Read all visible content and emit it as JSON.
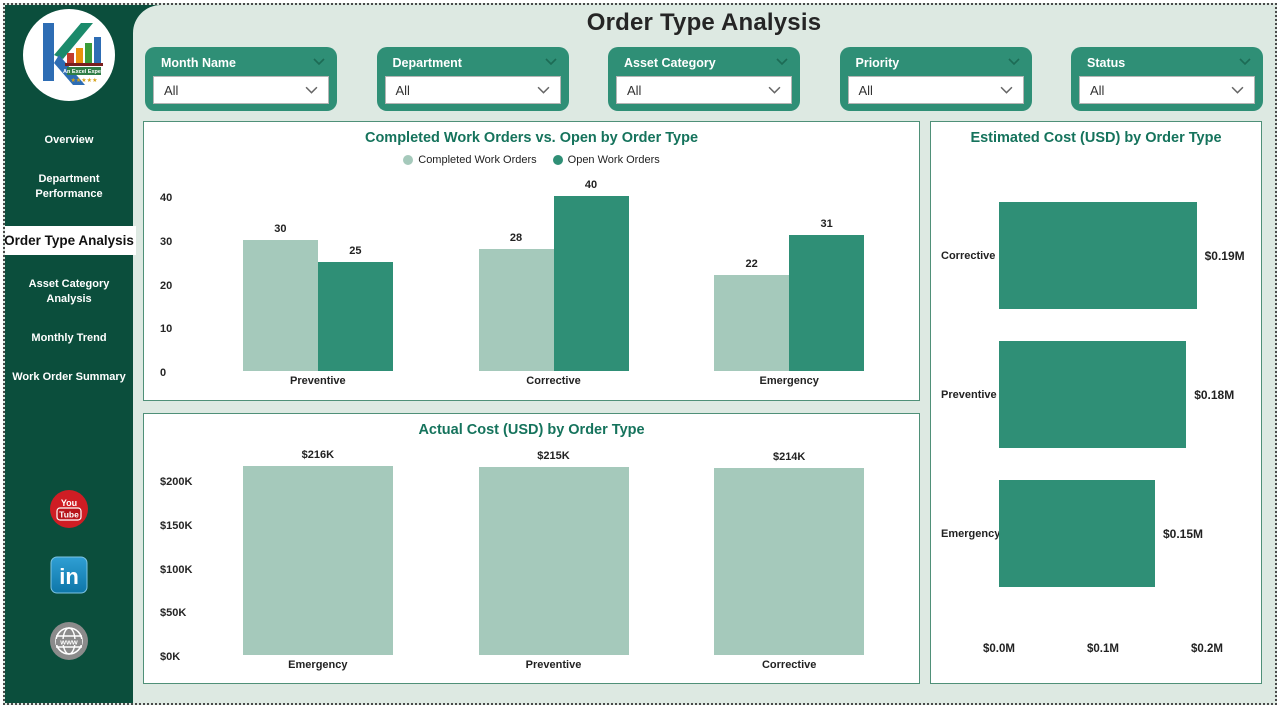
{
  "page": {
    "title": "Order Type Analysis"
  },
  "sidebar": {
    "logo": {
      "text": "An Excel Expert",
      "stars": "★★★★★"
    },
    "items": [
      {
        "label": "Overview",
        "active": false
      },
      {
        "label": "Department Performance",
        "active": false
      },
      {
        "label": "Order Type Analysis",
        "active": true
      },
      {
        "label": "Asset Category Analysis",
        "active": false
      },
      {
        "label": "Monthly Trend",
        "active": false
      },
      {
        "label": "Work Order Summary",
        "active": false
      }
    ],
    "social": {
      "youtube": {
        "text1": "You",
        "text2": "Tube"
      },
      "linkedin": {
        "text": "in"
      },
      "website": {
        "text": "www"
      }
    }
  },
  "filters": [
    {
      "label": "Month Name",
      "value": "All"
    },
    {
      "label": "Department",
      "value": "All"
    },
    {
      "label": "Asset Category",
      "value": "All"
    },
    {
      "label": "Priority",
      "value": "All"
    },
    {
      "label": "Status",
      "value": "All"
    }
  ],
  "colors": {
    "sidebar_green": "#0b4e3c",
    "accent_green": "#2f8f76",
    "bar_light": "#a5c9bb",
    "bar_dark": "#2f8f76",
    "chart_title": "#15735c",
    "panel_border": "#4f9078",
    "background": "#dde9e2"
  },
  "chart_data": [
    {
      "id": "completed_vs_open",
      "type": "bar",
      "title": "Completed Work Orders vs. Open by Order Type",
      "categories": [
        "Preventive",
        "Corrective",
        "Emergency"
      ],
      "series": [
        {
          "name": "Completed Work Orders",
          "color": "#a5c9bb",
          "values": [
            30,
            28,
            22
          ]
        },
        {
          "name": "Open Work Orders",
          "color": "#2f8f76",
          "values": [
            25,
            40,
            31
          ]
        }
      ],
      "ylim": [
        0,
        40
      ],
      "yticks": [
        0,
        10,
        20,
        30,
        40
      ],
      "legend_position": "top",
      "grid": false,
      "data_labels": true
    },
    {
      "id": "actual_cost",
      "type": "bar",
      "title": "Actual Cost (USD) by Order Type",
      "categories": [
        "Emergency",
        "Preventive",
        "Corrective"
      ],
      "values": [
        216,
        215,
        214
      ],
      "labels": [
        "$216K",
        "$215K",
        "$214K"
      ],
      "unit": "USD thousands",
      "bar_color": "#a5c9bb",
      "ylim": [
        0,
        225
      ],
      "yticks": [
        {
          "value": 0,
          "label": "$0K"
        },
        {
          "value": 50,
          "label": "$50K"
        },
        {
          "value": 100,
          "label": "$100K"
        },
        {
          "value": 150,
          "label": "$150K"
        },
        {
          "value": 200,
          "label": "$200K"
        }
      ],
      "grid": false,
      "data_labels": true
    },
    {
      "id": "estimated_cost",
      "type": "bar-horizontal",
      "title": "Estimated Cost (USD) by Order Type",
      "categories": [
        "Corrective",
        "Preventive",
        "Emergency"
      ],
      "values": [
        0.19,
        0.18,
        0.15
      ],
      "labels": [
        "$0.19M",
        "$0.18M",
        "$0.15M"
      ],
      "unit": "USD millions",
      "bar_color": "#2f8f76",
      "xlim": [
        0,
        0.2
      ],
      "xticks": [
        {
          "value": 0,
          "label": "$0.0M"
        },
        {
          "value": 0.1,
          "label": "$0.1M"
        },
        {
          "value": 0.2,
          "label": "$0.2M"
        }
      ],
      "grid": false,
      "data_labels": true
    }
  ]
}
